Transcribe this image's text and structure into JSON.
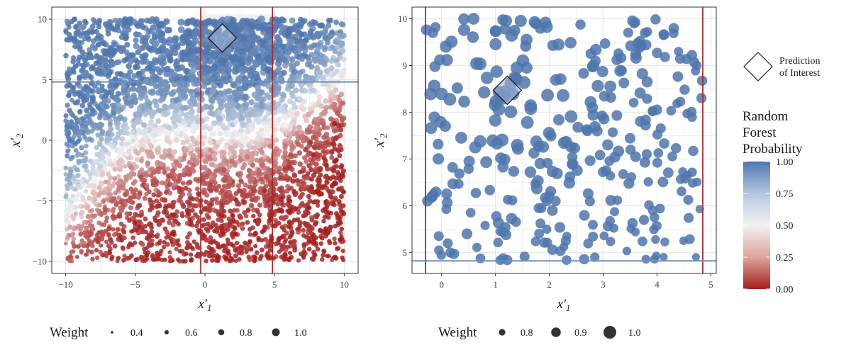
{
  "chart_data": [
    {
      "type": "scatter",
      "id": "left",
      "xlabel_base": "x′",
      "xlabel_sub": "1",
      "ylabel_base": "x′",
      "ylabel_sub": "2",
      "xlim": [
        -11,
        11
      ],
      "ylim": [
        -11,
        11
      ],
      "xticks": [
        -10,
        -5,
        0,
        5,
        10
      ],
      "yticks": [
        -10,
        -5,
        0,
        5,
        10
      ],
      "xtick_labels": [
        "−10",
        "−5",
        "0",
        "5",
        "10"
      ],
      "ytick_labels": [
        "−10",
        "−5",
        "0",
        "5",
        "10"
      ],
      "grid": true,
      "n_points": 4000,
      "point_domain": {
        "x": [
          -10,
          10
        ],
        "y": [
          -10,
          10
        ]
      },
      "highlight_region": {
        "x": [
          -0.3,
          4.85
        ],
        "y": [
          4.82,
          10.4
        ]
      },
      "vlines": [
        -0.3,
        4.85
      ],
      "hline": 4.82,
      "marker": {
        "x": 1.25,
        "y": 8.45,
        "shape": "diamond"
      },
      "size_legend": {
        "title": "Weight",
        "values": [
          0.4,
          0.6,
          0.8,
          1.0
        ],
        "labels": [
          "0.4",
          "0.6",
          "0.8",
          "1.0"
        ]
      }
    },
    {
      "type": "scatter",
      "id": "right",
      "xlabel_base": "x′",
      "xlabel_sub": "1",
      "ylabel_base": "x′",
      "ylabel_sub": "2",
      "xlim": [
        -0.55,
        5.1
      ],
      "ylim": [
        4.55,
        10.25
      ],
      "xticks": [
        0,
        1,
        2,
        3,
        4,
        5
      ],
      "yticks": [
        5,
        6,
        7,
        8,
        9,
        10
      ],
      "xtick_labels": [
        "0",
        "1",
        "2",
        "3",
        "4",
        "5"
      ],
      "ytick_labels": [
        "5",
        "6",
        "7",
        "8",
        "9",
        "10"
      ],
      "grid": true,
      "n_points": 330,
      "point_domain": {
        "x": [
          -0.3,
          4.85
        ],
        "y": [
          4.82,
          10.0
        ]
      },
      "vlines": [
        -0.3,
        4.85
      ],
      "hline": 4.82,
      "marker": {
        "x": 1.22,
        "y": 8.47,
        "shape": "diamond"
      },
      "size_legend": {
        "title": "Weight",
        "values": [
          0.8,
          0.9,
          1.0
        ],
        "labels": [
          "0.8",
          "0.9",
          "1.0"
        ]
      }
    }
  ],
  "legend": {
    "marker_label": [
      "Prediction",
      "of Interest"
    ],
    "color_title": [
      "Random",
      "Forest",
      "Probability"
    ],
    "color_ticks": [
      "1.00",
      "0.75",
      "0.50",
      "0.25",
      "0.00"
    ],
    "color_values": [
      1.0,
      0.75,
      0.5,
      0.25,
      0.0
    ]
  },
  "colors": {
    "high": "#4f76ad",
    "mid": "#f2f2f2",
    "low": "#a51f1f",
    "vline": "#a52a2a",
    "hline": "#6f8fbf",
    "grid": "#e6e6e6",
    "panel_border": "#333333"
  }
}
